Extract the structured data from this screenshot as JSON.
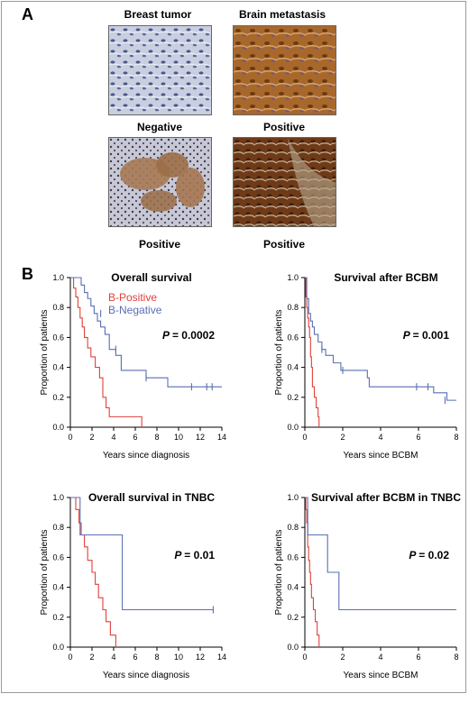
{
  "panels": {
    "a_label": "A",
    "b_label": "B"
  },
  "images": {
    "col_headers": [
      "Breast tumor",
      "Brain metastasis"
    ],
    "row1_labels": [
      "Negative",
      "Positive"
    ],
    "row2_labels": [
      "Positive",
      "Positive"
    ]
  },
  "legend": {
    "positive": "B-Positive",
    "negative": "B-Negative"
  },
  "colors": {
    "positive": "#e0403a",
    "negative": "#5a6fb5"
  },
  "chart_data": [
    {
      "type": "line",
      "title": "Overall survival",
      "xlabel": "Years since diagnosis",
      "ylabel": "Proportion of patients",
      "xlim": [
        0,
        14
      ],
      "ylim": [
        0,
        1.0
      ],
      "xticks": [
        0,
        2,
        4,
        6,
        8,
        10,
        12,
        14
      ],
      "yticks": [
        0.0,
        0.2,
        0.4,
        0.6,
        0.8,
        1.0
      ],
      "pvalue": "= 0.0002",
      "series": [
        {
          "name": "B-Positive",
          "x": [
            0,
            0.3,
            0.5,
            0.7,
            0.9,
            1.1,
            1.3,
            1.6,
            1.9,
            2.3,
            2.7,
            3.0,
            3.3,
            3.6,
            4.0,
            6.6
          ],
          "y": [
            1.0,
            0.93,
            0.87,
            0.8,
            0.73,
            0.67,
            0.6,
            0.53,
            0.47,
            0.4,
            0.33,
            0.2,
            0.13,
            0.07,
            0.07,
            0.0
          ]
        },
        {
          "name": "B-Negative",
          "x": [
            0,
            1.0,
            1.3,
            1.6,
            1.9,
            2.2,
            2.5,
            2.8,
            3.2,
            3.6,
            4.2,
            4.7,
            7.0,
            9.0,
            14.0
          ],
          "y": [
            1.0,
            0.95,
            0.9,
            0.86,
            0.81,
            0.76,
            0.71,
            0.67,
            0.62,
            0.52,
            0.48,
            0.38,
            0.33,
            0.27,
            0.27
          ],
          "censor": [
            [
              2.8,
              0.76
            ],
            [
              4.2,
              0.52
            ],
            [
              7.0,
              0.33
            ],
            [
              11.2,
              0.27
            ],
            [
              12.6,
              0.27
            ],
            [
              13.1,
              0.27
            ]
          ]
        }
      ]
    },
    {
      "type": "line",
      "title": "Survival after BCBM",
      "xlabel": "Years since BCBM",
      "ylabel": "Proportion of patients",
      "xlim": [
        0,
        8
      ],
      "ylim": [
        0,
        1.0
      ],
      "xticks": [
        0,
        2,
        4,
        6,
        8
      ],
      "yticks": [
        0.0,
        0.2,
        0.4,
        0.6,
        0.8,
        1.0
      ],
      "pvalue": "= 0.001",
      "series": [
        {
          "name": "B-Positive",
          "x": [
            0,
            0.05,
            0.1,
            0.15,
            0.2,
            0.25,
            0.3,
            0.35,
            0.4,
            0.5,
            0.6,
            0.7,
            0.75
          ],
          "y": [
            1.0,
            0.87,
            0.8,
            0.73,
            0.67,
            0.6,
            0.47,
            0.4,
            0.27,
            0.2,
            0.13,
            0.07,
            0.0
          ]
        },
        {
          "name": "B-Negative",
          "x": [
            0,
            0.1,
            0.2,
            0.3,
            0.4,
            0.5,
            0.7,
            0.9,
            1.1,
            1.5,
            1.9,
            3.3,
            3.4,
            6.8,
            7.5,
            8.0
          ],
          "y": [
            1.0,
            0.86,
            0.76,
            0.71,
            0.67,
            0.62,
            0.57,
            0.52,
            0.48,
            0.43,
            0.38,
            0.33,
            0.27,
            0.23,
            0.18,
            0.18
          ],
          "censor": [
            [
              0.9,
              0.52
            ],
            [
              2.0,
              0.38
            ],
            [
              5.9,
              0.27
            ],
            [
              6.5,
              0.27
            ],
            [
              7.4,
              0.18
            ]
          ]
        }
      ]
    },
    {
      "type": "line",
      "title": "Overall survival in TNBC",
      "xlabel": "Years since diagnosis",
      "ylabel": "Proportion of patients",
      "xlim": [
        0,
        14
      ],
      "ylim": [
        0,
        1.0
      ],
      "xticks": [
        0,
        2,
        4,
        6,
        8,
        10,
        12,
        14
      ],
      "yticks": [
        0.0,
        0.2,
        0.4,
        0.6,
        0.8,
        1.0
      ],
      "pvalue": "= 0.01",
      "series": [
        {
          "name": "B-Positive",
          "x": [
            0,
            0.5,
            0.8,
            1.0,
            1.3,
            1.6,
            2.0,
            2.3,
            2.6,
            3.0,
            3.3,
            3.7,
            4.2
          ],
          "y": [
            1.0,
            0.92,
            0.83,
            0.75,
            0.67,
            0.58,
            0.5,
            0.42,
            0.33,
            0.25,
            0.17,
            0.08,
            0.0
          ]
        },
        {
          "name": "B-Negative",
          "x": [
            0,
            0.9,
            4.8,
            13.2
          ],
          "y": [
            1.0,
            0.75,
            0.25,
            0.25
          ],
          "censor": [
            [
              13.2,
              0.25
            ]
          ]
        }
      ]
    },
    {
      "type": "line",
      "title": "Survival after BCBM in TNBC",
      "xlabel": "Years since BCBM",
      "ylabel": "Proportion of patients",
      "xlim": [
        0,
        8
      ],
      "ylim": [
        0,
        1.0
      ],
      "xticks": [
        0,
        2,
        4,
        6,
        8
      ],
      "yticks": [
        0.0,
        0.2,
        0.4,
        0.6,
        0.8,
        1.0
      ],
      "pvalue": "= 0.02",
      "series": [
        {
          "name": "B-Positive",
          "x": [
            0,
            0.05,
            0.1,
            0.15,
            0.2,
            0.25,
            0.3,
            0.35,
            0.45,
            0.55,
            0.65,
            0.75
          ],
          "y": [
            1.0,
            0.92,
            0.83,
            0.67,
            0.58,
            0.5,
            0.42,
            0.33,
            0.25,
            0.17,
            0.08,
            0.0
          ]
        },
        {
          "name": "B-Negative",
          "x": [
            0,
            0.15,
            1.2,
            1.8,
            8.0
          ],
          "y": [
            1.0,
            0.75,
            0.5,
            0.25,
            0.25
          ]
        }
      ]
    }
  ]
}
